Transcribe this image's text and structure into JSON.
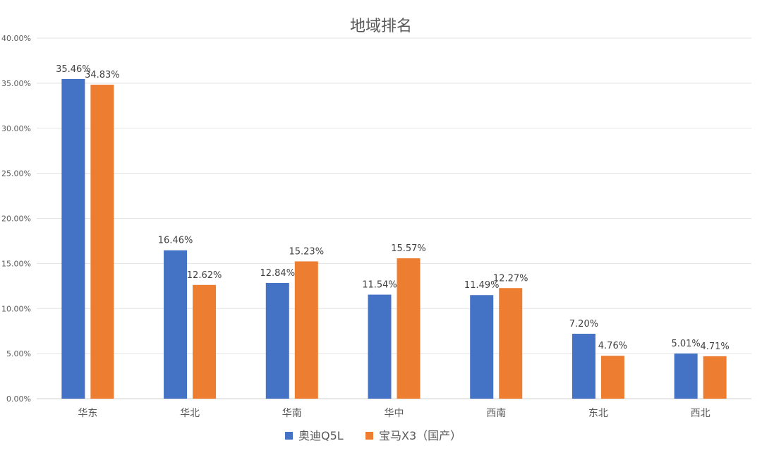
{
  "chart_data": {
    "type": "bar",
    "title": "地域排名",
    "xlabel": "",
    "ylabel": "",
    "categories": [
      "华东",
      "华北",
      "华南",
      "华中",
      "西南",
      "东北",
      "西北"
    ],
    "series": [
      {
        "name": "奥迪Q5L",
        "color": "#4472C4",
        "values": [
          35.46,
          16.46,
          12.84,
          11.54,
          11.49,
          7.2,
          5.01
        ],
        "labels": [
          "35.46%",
          "16.46%",
          "12.84%",
          "11.54%",
          "11.49%",
          "7.20%",
          "5.01%"
        ]
      },
      {
        "name": "宝马X3（国产）",
        "color": "#ED7D31",
        "values": [
          34.83,
          12.62,
          15.23,
          15.57,
          12.27,
          4.76,
          4.71
        ],
        "labels": [
          "34.83%",
          "12.62%",
          "15.23%",
          "15.57%",
          "12.27%",
          "4.76%",
          "4.71%"
        ]
      }
    ],
    "ylim": [
      0,
      40
    ],
    "yticks": [
      0,
      5,
      10,
      15,
      20,
      25,
      30,
      35,
      40
    ],
    "ytick_labels": [
      "0.00%",
      "5.00%",
      "10.00%",
      "15.00%",
      "20.00%",
      "25.00%",
      "30.00%",
      "35.00%",
      "40.00%"
    ],
    "grid": true,
    "legend_position": "bottom"
  }
}
